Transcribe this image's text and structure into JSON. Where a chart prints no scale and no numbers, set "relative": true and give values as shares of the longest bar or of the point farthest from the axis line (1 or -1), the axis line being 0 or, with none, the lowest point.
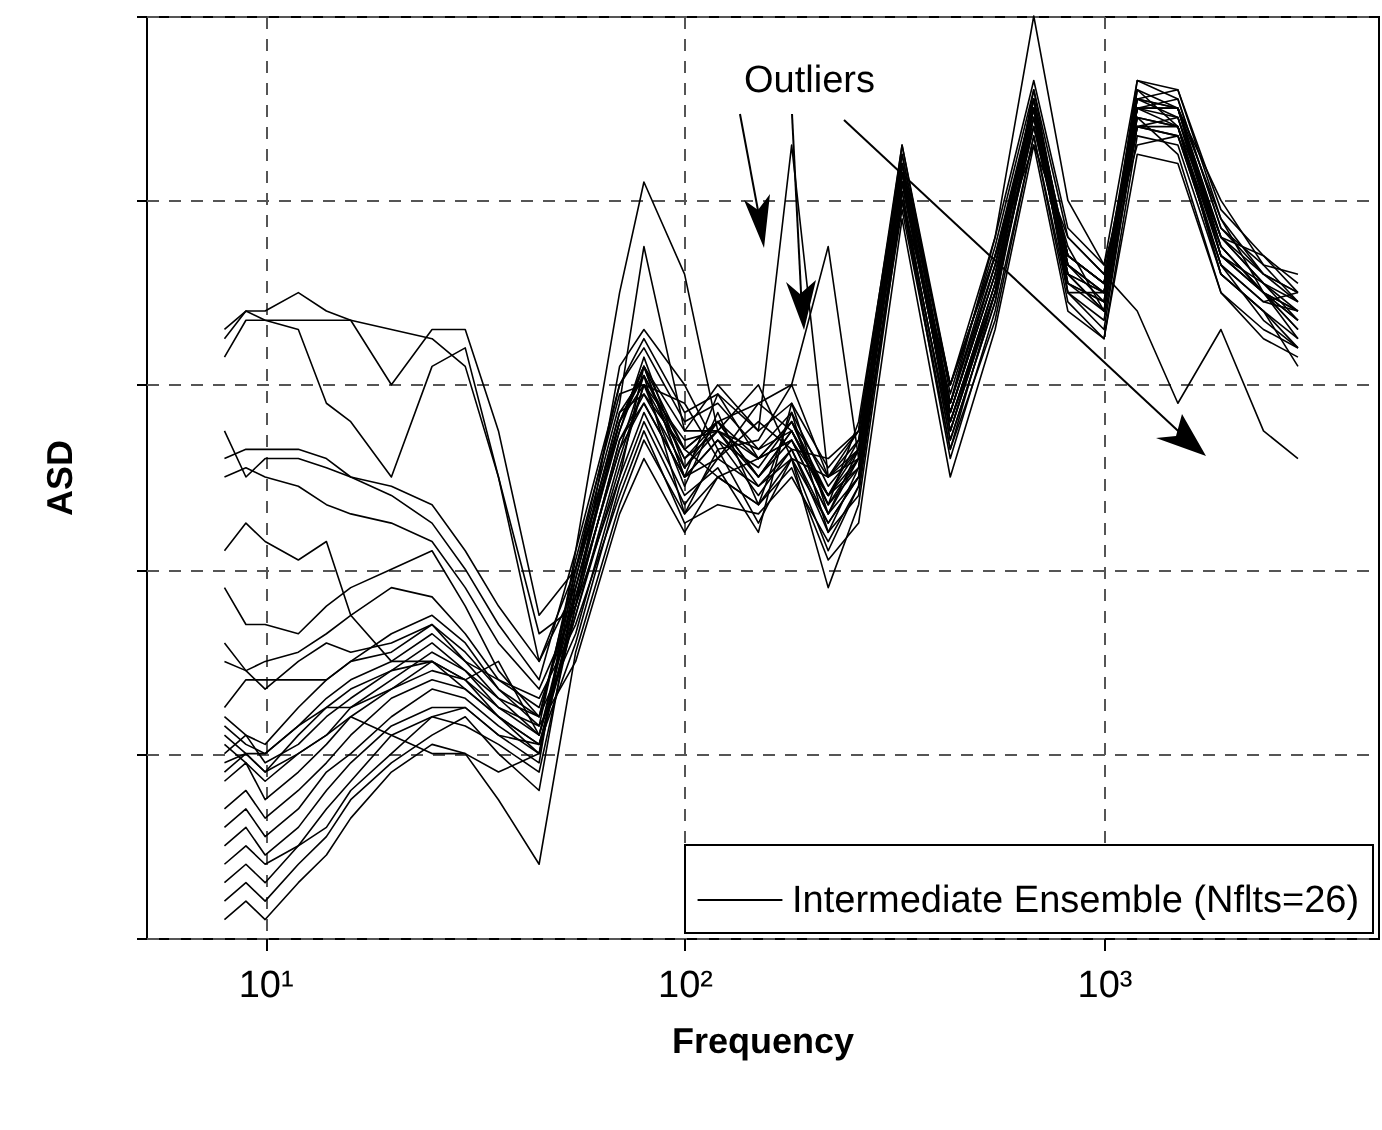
{
  "chart_data": {
    "type": "line",
    "xlabel": "Frequency",
    "ylabel": "ASD",
    "annotations": [
      "Outliers"
    ],
    "relative": true,
    "log": "x",
    "grid": true,
    "legend": "bottom right",
    "line_style": "solid",
    "marker": "none",
    "x": [
      8,
      9,
      10,
      12,
      14,
      16,
      20,
      25,
      30,
      36,
      45,
      55,
      70,
      80,
      100,
      120,
      150,
      180,
      220,
      260,
      330,
      430,
      550,
      680,
      820,
      1000,
      1200,
      1500,
      1900,
      2400,
      2900
    ],
    "xlim": [
      5.2,
      4500
    ],
    "xticks": [
      {
        "value": 10,
        "label": "10¹"
      },
      {
        "value": 100,
        "label": "10²"
      },
      {
        "value": 1000,
        "label": "10³"
      }
    ],
    "series": [
      {
        "name": "Intermediate Ensemble (Nflts=26)",
        "color": "#000000",
        "values": [
          0.65,
          0.68,
          0.68,
          0.7,
          0.68,
          0.67,
          0.6,
          0.66,
          0.66,
          0.55,
          0.35,
          0.4,
          0.58,
          0.75,
          0.55,
          0.6,
          0.55,
          0.86,
          0.5,
          0.55,
          0.8,
          0.6,
          0.74,
          0.88,
          0.72,
          0.68,
          0.88,
          0.88,
          0.76,
          0.72,
          0.7
        ]
      },
      {
        "color": "#000000",
        "values": [
          0.63,
          0.67,
          0.67,
          0.67,
          0.67,
          0.67,
          0.66,
          0.65,
          0.62,
          0.5,
          0.33,
          0.36,
          0.5,
          0.62,
          0.5,
          0.52,
          0.58,
          0.6,
          0.75,
          0.52,
          0.82,
          0.56,
          0.7,
          0.92,
          0.73,
          0.7,
          0.9,
          0.9,
          0.74,
          0.7,
          0.68
        ]
      },
      {
        "color": "#000000",
        "values": [
          0.66,
          0.68,
          0.67,
          0.66,
          0.58,
          0.56,
          0.5,
          0.62,
          0.64,
          0.5,
          0.3,
          0.4,
          0.56,
          0.62,
          0.55,
          0.55,
          0.52,
          0.56,
          0.5,
          0.53,
          0.84,
          0.6,
          0.74,
          0.86,
          0.76,
          0.72,
          0.68,
          0.58,
          0.66,
          0.55,
          0.52
        ]
      },
      {
        "color": "#000000",
        "values": [
          0.55,
          0.5,
          0.52,
          0.52,
          0.51,
          0.5,
          0.49,
          0.47,
          0.42,
          0.36,
          0.3,
          0.38,
          0.56,
          0.62,
          0.53,
          0.56,
          0.5,
          0.55,
          0.48,
          0.52,
          0.85,
          0.58,
          0.76,
          1.0,
          0.8,
          0.73,
          0.86,
          0.87,
          0.75,
          0.7,
          0.66
        ]
      },
      {
        "color": "#000000",
        "values": [
          0.52,
          0.53,
          0.53,
          0.53,
          0.52,
          0.5,
          0.48,
          0.45,
          0.4,
          0.34,
          0.28,
          0.42,
          0.7,
          0.82,
          0.72,
          0.55,
          0.6,
          0.52,
          0.5,
          0.54,
          0.8,
          0.55,
          0.7,
          0.88,
          0.75,
          0.68,
          0.92,
          0.88,
          0.73,
          0.69,
          0.7
        ]
      },
      {
        "color": "#000000",
        "values": [
          0.5,
          0.51,
          0.5,
          0.49,
          0.47,
          0.46,
          0.45,
          0.43,
          0.38,
          0.32,
          0.27,
          0.36,
          0.54,
          0.58,
          0.5,
          0.54,
          0.48,
          0.53,
          0.45,
          0.5,
          0.82,
          0.56,
          0.71,
          0.9,
          0.71,
          0.69,
          0.93,
          0.91,
          0.77,
          0.72,
          0.69
        ]
      },
      {
        "color": "#000000",
        "values": [
          0.42,
          0.45,
          0.43,
          0.41,
          0.43,
          0.35,
          0.3,
          0.3,
          0.28,
          0.3,
          0.22,
          0.35,
          0.52,
          0.6,
          0.49,
          0.57,
          0.47,
          0.57,
          0.44,
          0.51,
          0.84,
          0.55,
          0.7,
          0.91,
          0.7,
          0.7,
          0.9,
          0.89,
          0.74,
          0.71,
          0.67
        ]
      },
      {
        "color": "#000000",
        "values": [
          0.38,
          0.34,
          0.34,
          0.33,
          0.36,
          0.38,
          0.4,
          0.42,
          0.36,
          0.29,
          0.24,
          0.39,
          0.57,
          0.59,
          0.53,
          0.5,
          0.52,
          0.54,
          0.48,
          0.54,
          0.83,
          0.57,
          0.73,
          0.89,
          0.74,
          0.71,
          0.91,
          0.92,
          0.78,
          0.7,
          0.65
        ]
      },
      {
        "color": "#000000",
        "values": [
          0.32,
          0.29,
          0.3,
          0.31,
          0.33,
          0.35,
          0.38,
          0.37,
          0.33,
          0.28,
          0.25,
          0.37,
          0.53,
          0.61,
          0.46,
          0.53,
          0.45,
          0.52,
          0.42,
          0.49,
          0.81,
          0.54,
          0.69,
          0.9,
          0.7,
          0.66,
          0.89,
          0.85,
          0.7,
          0.66,
          0.64
        ]
      },
      {
        "color": "#000000",
        "values": [
          0.3,
          0.29,
          0.27,
          0.3,
          0.32,
          0.31,
          0.32,
          0.34,
          0.31,
          0.27,
          0.24,
          0.4,
          0.6,
          0.64,
          0.56,
          0.58,
          0.53,
          0.57,
          0.49,
          0.53,
          0.86,
          0.59,
          0.75,
          0.92,
          0.76,
          0.72,
          0.9,
          0.9,
          0.8,
          0.73,
          0.72
        ]
      },
      {
        "color": "#000000",
        "values": [
          0.25,
          0.28,
          0.28,
          0.28,
          0.28,
          0.3,
          0.31,
          0.34,
          0.3,
          0.28,
          0.26,
          0.34,
          0.48,
          0.55,
          0.45,
          0.47,
          0.46,
          0.5,
          0.43,
          0.49,
          0.8,
          0.52,
          0.68,
          0.87,
          0.69,
          0.65,
          0.87,
          0.86,
          0.72,
          0.68,
          0.64
        ]
      },
      {
        "color": "#000000",
        "values": [
          0.24,
          0.22,
          0.21,
          0.25,
          0.28,
          0.3,
          0.33,
          0.35,
          0.32,
          0.27,
          0.23,
          0.41,
          0.59,
          0.6,
          0.58,
          0.52,
          0.56,
          0.53,
          0.52,
          0.55,
          0.84,
          0.58,
          0.73,
          0.9,
          0.73,
          0.7,
          0.91,
          0.9,
          0.76,
          0.74,
          0.7
        ]
      },
      {
        "color": "#000000",
        "values": [
          0.23,
          0.21,
          0.2,
          0.23,
          0.26,
          0.28,
          0.3,
          0.33,
          0.3,
          0.26,
          0.24,
          0.33,
          0.5,
          0.57,
          0.48,
          0.51,
          0.44,
          0.58,
          0.46,
          0.5,
          0.79,
          0.53,
          0.7,
          0.88,
          0.72,
          0.68,
          0.88,
          0.89,
          0.76,
          0.71,
          0.68
        ]
      },
      {
        "color": "#000000",
        "values": [
          0.22,
          0.2,
          0.18,
          0.22,
          0.25,
          0.27,
          0.29,
          0.32,
          0.29,
          0.26,
          0.22,
          0.38,
          0.55,
          0.63,
          0.51,
          0.56,
          0.5,
          0.55,
          0.47,
          0.56,
          0.85,
          0.6,
          0.74,
          0.91,
          0.74,
          0.71,
          0.92,
          0.9,
          0.78,
          0.72,
          0.7
        ]
      },
      {
        "color": "#000000",
        "values": [
          0.21,
          0.19,
          0.17,
          0.2,
          0.22,
          0.25,
          0.28,
          0.31,
          0.29,
          0.25,
          0.23,
          0.3,
          0.46,
          0.52,
          0.44,
          0.5,
          0.47,
          0.51,
          0.41,
          0.45,
          0.78,
          0.5,
          0.66,
          0.86,
          0.68,
          0.65,
          0.85,
          0.84,
          0.7,
          0.65,
          0.63
        ]
      },
      {
        "color": "#000000",
        "values": [
          0.2,
          0.22,
          0.19,
          0.21,
          0.24,
          0.26,
          0.29,
          0.3,
          0.28,
          0.24,
          0.21,
          0.36,
          0.62,
          0.66,
          0.6,
          0.53,
          0.54,
          0.6,
          0.5,
          0.52,
          0.82,
          0.57,
          0.72,
          0.9,
          0.73,
          0.69,
          0.89,
          0.88,
          0.74,
          0.7,
          0.67
        ]
      },
      {
        "color": "#000000",
        "values": [
          0.19,
          0.2,
          0.2,
          0.23,
          0.25,
          0.25,
          0.27,
          0.29,
          0.28,
          0.25,
          0.22,
          0.37,
          0.53,
          0.58,
          0.5,
          0.59,
          0.52,
          0.54,
          0.46,
          0.53,
          0.83,
          0.56,
          0.7,
          0.89,
          0.71,
          0.69,
          0.9,
          0.91,
          0.77,
          0.73,
          0.69
        ]
      },
      {
        "color": "#000000",
        "values": [
          0.17,
          0.19,
          0.15,
          0.18,
          0.21,
          0.24,
          0.27,
          0.3,
          0.27,
          0.24,
          0.21,
          0.35,
          0.51,
          0.6,
          0.54,
          0.55,
          0.49,
          0.52,
          0.45,
          0.5,
          0.84,
          0.55,
          0.71,
          0.91,
          0.72,
          0.7,
          0.91,
          0.89,
          0.75,
          0.7,
          0.66
        ]
      },
      {
        "color": "#000000",
        "values": [
          0.14,
          0.16,
          0.13,
          0.16,
          0.19,
          0.22,
          0.26,
          0.28,
          0.27,
          0.24,
          0.2,
          0.39,
          0.57,
          0.61,
          0.52,
          0.56,
          0.58,
          0.55,
          0.48,
          0.51,
          0.82,
          0.58,
          0.74,
          0.9,
          0.74,
          0.71,
          0.88,
          0.87,
          0.73,
          0.69,
          0.68
        ]
      },
      {
        "color": "#000000",
        "values": [
          0.12,
          0.14,
          0.11,
          0.14,
          0.18,
          0.2,
          0.24,
          0.27,
          0.26,
          0.23,
          0.2,
          0.4,
          0.55,
          0.62,
          0.5,
          0.54,
          0.51,
          0.56,
          0.47,
          0.52,
          0.83,
          0.57,
          0.72,
          0.9,
          0.73,
          0.7,
          0.9,
          0.9,
          0.75,
          0.7,
          0.68
        ]
      },
      {
        "color": "#000000",
        "values": [
          0.1,
          0.12,
          0.09,
          0.12,
          0.16,
          0.19,
          0.23,
          0.25,
          0.25,
          0.22,
          0.21,
          0.32,
          0.49,
          0.56,
          0.47,
          0.52,
          0.49,
          0.53,
          0.44,
          0.48,
          0.81,
          0.54,
          0.69,
          0.89,
          0.71,
          0.68,
          0.9,
          0.88,
          0.72,
          0.68,
          0.65
        ]
      },
      {
        "color": "#000000",
        "values": [
          0.08,
          0.1,
          0.08,
          0.1,
          0.14,
          0.17,
          0.22,
          0.24,
          0.25,
          0.22,
          0.19,
          0.42,
          0.6,
          0.65,
          0.57,
          0.59,
          0.55,
          0.58,
          0.51,
          0.55,
          0.86,
          0.6,
          0.76,
          0.93,
          0.77,
          0.73,
          0.93,
          0.92,
          0.79,
          0.74,
          0.71
        ]
      },
      {
        "color": "#000000",
        "values": [
          0.06,
          0.08,
          0.06,
          0.1,
          0.12,
          0.16,
          0.2,
          0.24,
          0.23,
          0.21,
          0.18,
          0.36,
          0.54,
          0.59,
          0.51,
          0.55,
          0.5,
          0.54,
          0.46,
          0.52,
          0.82,
          0.56,
          0.71,
          0.9,
          0.72,
          0.7,
          0.9,
          0.9,
          0.74,
          0.7,
          0.67
        ]
      },
      {
        "color": "#000000",
        "values": [
          0.04,
          0.06,
          0.04,
          0.08,
          0.11,
          0.15,
          0.19,
          0.22,
          0.24,
          0.2,
          0.16,
          0.38,
          0.56,
          0.61,
          0.53,
          0.56,
          0.52,
          0.56,
          0.48,
          0.53,
          0.84,
          0.58,
          0.73,
          0.91,
          0.74,
          0.71,
          0.91,
          0.9,
          0.76,
          0.71,
          0.69
        ]
      },
      {
        "color": "#000000",
        "values": [
          0.02,
          0.04,
          0.02,
          0.06,
          0.09,
          0.13,
          0.18,
          0.21,
          0.2,
          0.15,
          0.08,
          0.31,
          0.47,
          0.54,
          0.46,
          0.5,
          0.47,
          0.52,
          0.38,
          0.47,
          0.8,
          0.53,
          0.67,
          0.87,
          0.7,
          0.67,
          0.88,
          0.87,
          0.73,
          0.67,
          0.64
        ]
      },
      {
        "color": "#000000",
        "values": [
          0.18,
          0.2,
          0.18,
          0.2,
          0.22,
          0.24,
          0.22,
          0.2,
          0.2,
          0.18,
          0.2,
          0.37,
          0.56,
          0.6,
          0.52,
          0.55,
          0.53,
          0.55,
          0.47,
          0.51,
          0.83,
          0.57,
          0.72,
          0.9,
          0.74,
          0.71,
          0.89,
          0.88,
          0.72,
          0.68,
          0.62
        ]
      }
    ]
  }
}
